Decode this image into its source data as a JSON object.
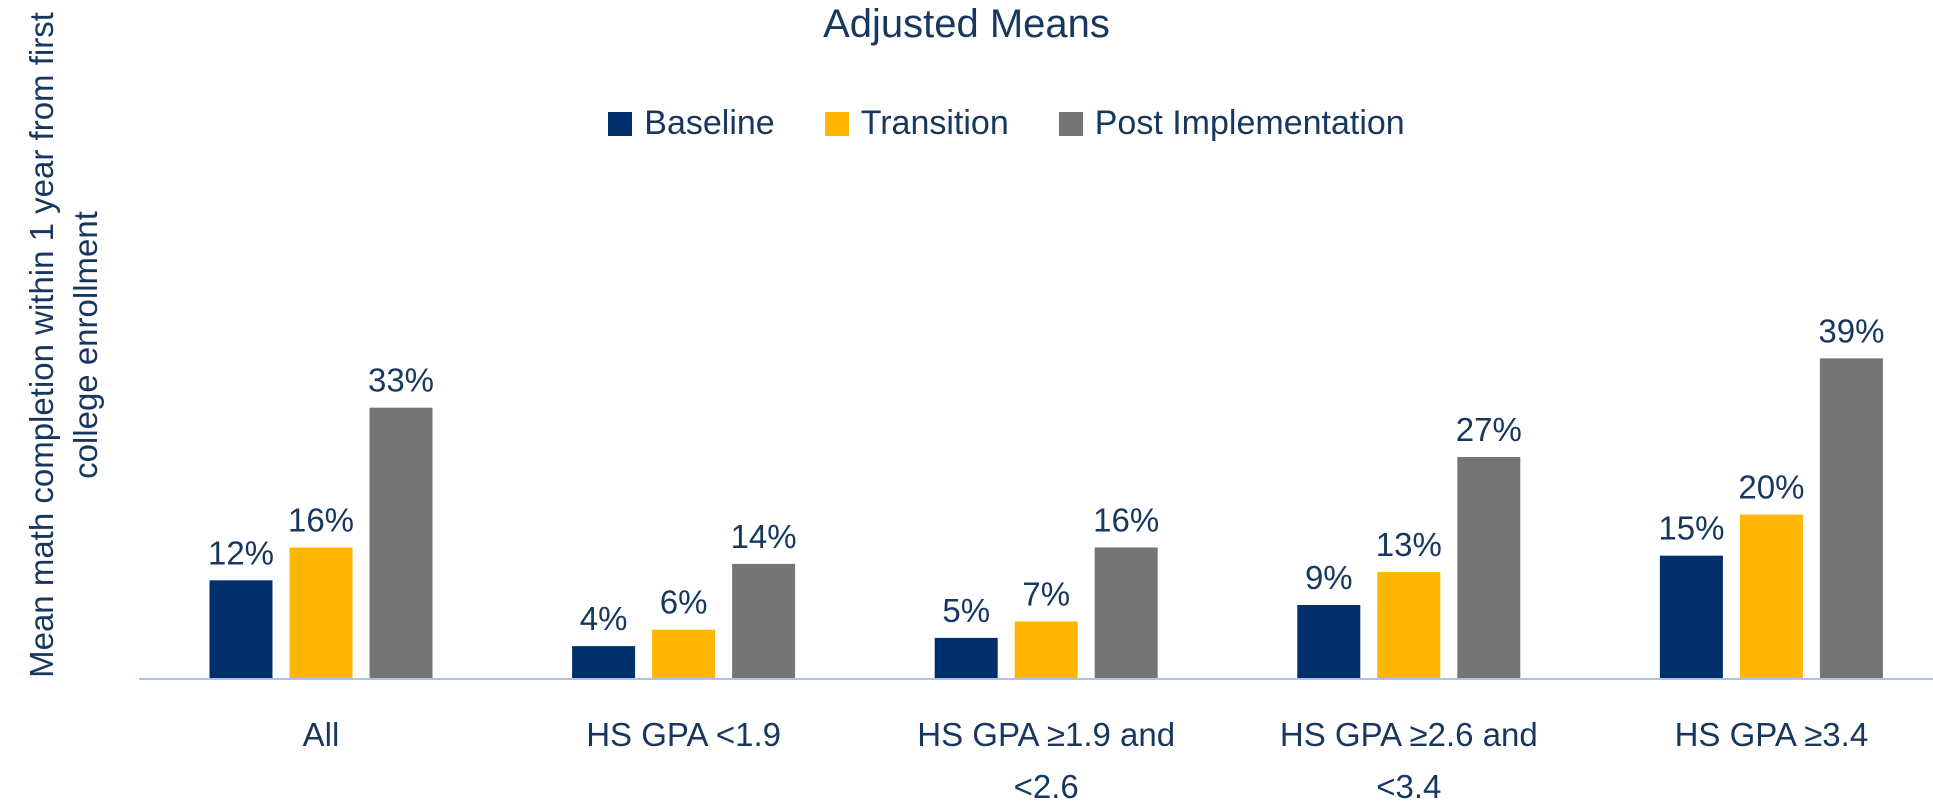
{
  "chart_data": {
    "type": "bar",
    "title": "Adjusted Means",
    "y_axis_label": "Mean math completion within 1 year from first college enrollment",
    "categories": [
      "All",
      "HS GPA <1.9",
      "HS GPA ≥1.9 and <2.6",
      "HS GPA ≥2.6 and <3.4",
      "HS GPA ≥3.4"
    ],
    "series": [
      {
        "name": "Baseline",
        "color": "#002f6c",
        "values": [
          12,
          4,
          5,
          9,
          15
        ],
        "value_labels": [
          "12%",
          "4%",
          "5%",
          "9%",
          "15%"
        ]
      },
      {
        "name": "Transition",
        "color": "#ffb600",
        "values": [
          16,
          6,
          7,
          13,
          20
        ],
        "value_labels": [
          "16%",
          "6%",
          "7%",
          "13%",
          "20%"
        ]
      },
      {
        "name": "Post Implementation",
        "color": "#757575",
        "values": [
          33,
          14,
          16,
          27,
          39
        ],
        "value_labels": [
          "33%",
          "14%",
          "16%",
          "27%",
          "39%"
        ]
      }
    ],
    "ylim": [
      0,
      45
    ],
    "legend": "top"
  }
}
